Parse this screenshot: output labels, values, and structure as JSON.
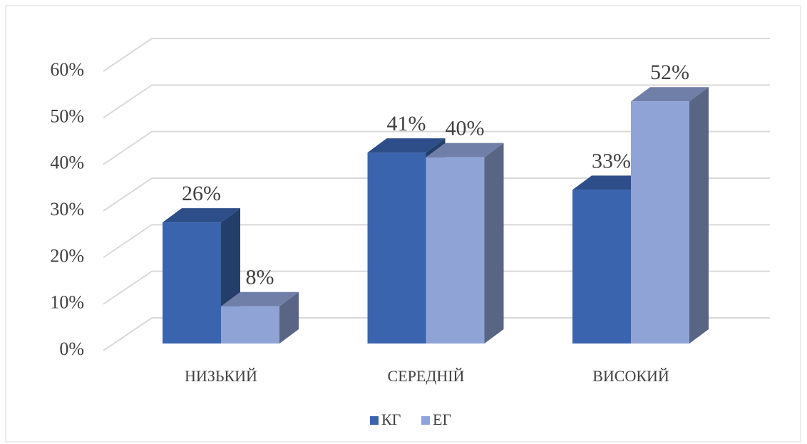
{
  "chart_data": {
    "type": "bar3d",
    "categories": [
      "НИЗЬКИЙ",
      "СЕРЕДНІЙ",
      "ВИСОКИЙ"
    ],
    "series": [
      {
        "name": "КГ",
        "color": "#3a64ae",
        "values": [
          26,
          41,
          33
        ],
        "value_labels": [
          "26%",
          "41%",
          "33%"
        ]
      },
      {
        "name": "ЕГ",
        "color": "#8fa3d6",
        "values": [
          8,
          40,
          52
        ],
        "value_labels": [
          "8%",
          "40%",
          "52%"
        ]
      }
    ],
    "ylim": [
      0,
      60
    ],
    "yticks": [
      {
        "value": 0,
        "label": "0%"
      },
      {
        "value": 10,
        "label": "10%"
      },
      {
        "value": 20,
        "label": "20%"
      },
      {
        "value": 30,
        "label": "30%"
      },
      {
        "value": 40,
        "label": "40%"
      },
      {
        "value": 50,
        "label": "50%"
      },
      {
        "value": 60,
        "label": "60%"
      }
    ],
    "grid": true,
    "legend": "bottom"
  }
}
